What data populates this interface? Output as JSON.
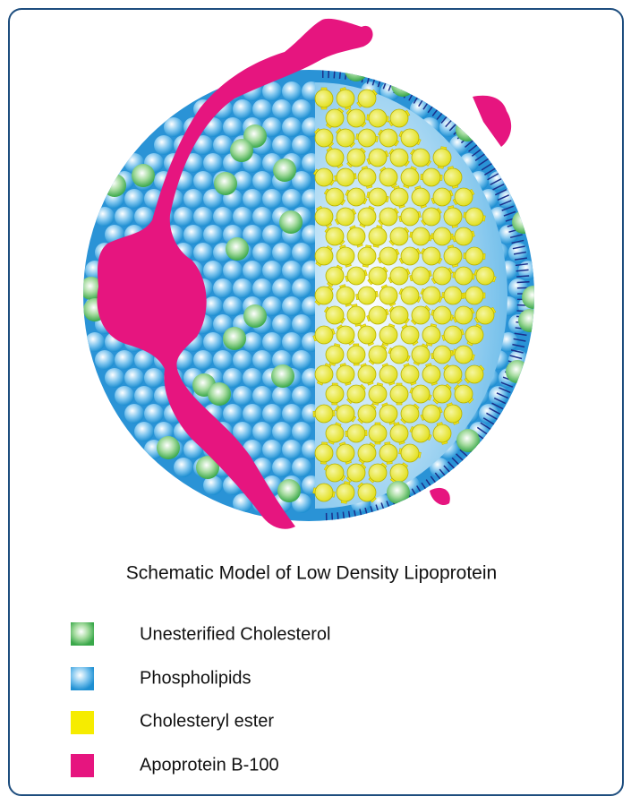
{
  "diagram": {
    "caption": "Schematic Model of Low Density Lipoprotein",
    "legend": [
      {
        "label": "Unesterified Cholesterol"
      },
      {
        "label": "Phospholipids"
      },
      {
        "label": "Cholesteryl ester"
      },
      {
        "label": "Apoprotein B-100"
      }
    ]
  }
}
